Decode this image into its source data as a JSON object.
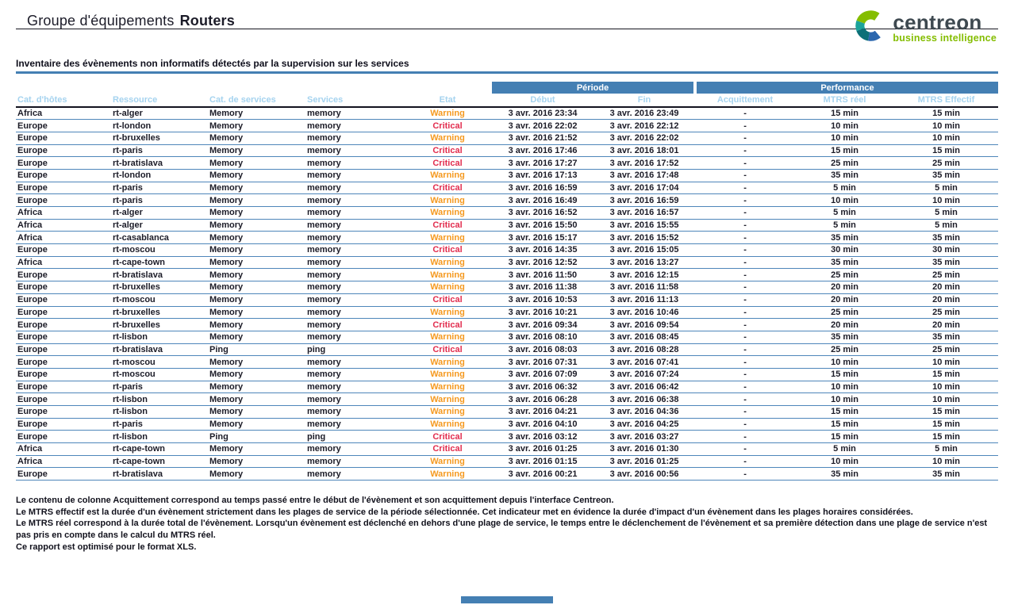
{
  "colors": {
    "accent_blue": "#447FB3",
    "subheader_text": "#A5D3EF",
    "warning": "#F5991F",
    "critical": "#E22D4E",
    "logo_green": "#84BD00",
    "logo_gray": "#3E4950",
    "text": "#1C1C28"
  },
  "header": {
    "title_prefix": "Groupe d'équipements",
    "title_group": "Routers",
    "logo_name": "centreon",
    "logo_tagline": "business intelligence"
  },
  "section": {
    "title": "Inventaire des évènements non informatifs détectés par la supervision sur les services"
  },
  "table": {
    "group_headers": {
      "periode": "Période",
      "performance": "Performance"
    },
    "columns": {
      "host_cat": "Cat. d'hôtes",
      "resource": "Ressource",
      "service_cat": "Cat. de services",
      "service": "Services",
      "state": "Etat",
      "start": "Début",
      "end": "Fin",
      "ack": "Acquittement",
      "mtrs_real": "MTRS réel",
      "mtrs_eff": "MTRS Effectif"
    },
    "rows": [
      {
        "host_cat": "Africa",
        "resource": "rt-alger",
        "service_cat": "Memory",
        "service": "memory",
        "state": "Warning",
        "start": "3 avr. 2016 23:34",
        "end": "3 avr. 2016 23:49",
        "ack": "-",
        "mtrs_real": "15 min",
        "mtrs_eff": "15 min"
      },
      {
        "host_cat": "Europe",
        "resource": "rt-london",
        "service_cat": "Memory",
        "service": "memory",
        "state": "Critical",
        "start": "3 avr. 2016 22:02",
        "end": "3 avr. 2016 22:12",
        "ack": "-",
        "mtrs_real": "10 min",
        "mtrs_eff": "10 min"
      },
      {
        "host_cat": "Europe",
        "resource": "rt-bruxelles",
        "service_cat": "Memory",
        "service": "memory",
        "state": "Warning",
        "start": "3 avr. 2016 21:52",
        "end": "3 avr. 2016 22:02",
        "ack": "-",
        "mtrs_real": "10 min",
        "mtrs_eff": "10 min"
      },
      {
        "host_cat": "Europe",
        "resource": "rt-paris",
        "service_cat": "Memory",
        "service": "memory",
        "state": "Critical",
        "start": "3 avr. 2016 17:46",
        "end": "3 avr. 2016 18:01",
        "ack": "-",
        "mtrs_real": "15 min",
        "mtrs_eff": "15 min"
      },
      {
        "host_cat": "Europe",
        "resource": "rt-bratislava",
        "service_cat": "Memory",
        "service": "memory",
        "state": "Critical",
        "start": "3 avr. 2016 17:27",
        "end": "3 avr. 2016 17:52",
        "ack": "-",
        "mtrs_real": "25 min",
        "mtrs_eff": "25 min"
      },
      {
        "host_cat": "Europe",
        "resource": "rt-london",
        "service_cat": "Memory",
        "service": "memory",
        "state": "Warning",
        "start": "3 avr. 2016 17:13",
        "end": "3 avr. 2016 17:48",
        "ack": "-",
        "mtrs_real": "35 min",
        "mtrs_eff": "35 min"
      },
      {
        "host_cat": "Europe",
        "resource": "rt-paris",
        "service_cat": "Memory",
        "service": "memory",
        "state": "Critical",
        "start": "3 avr. 2016 16:59",
        "end": "3 avr. 2016 17:04",
        "ack": "-",
        "mtrs_real": "5 min",
        "mtrs_eff": "5 min"
      },
      {
        "host_cat": "Europe",
        "resource": "rt-paris",
        "service_cat": "Memory",
        "service": "memory",
        "state": "Warning",
        "start": "3 avr. 2016 16:49",
        "end": "3 avr. 2016 16:59",
        "ack": "-",
        "mtrs_real": "10 min",
        "mtrs_eff": "10 min"
      },
      {
        "host_cat": "Africa",
        "resource": "rt-alger",
        "service_cat": "Memory",
        "service": "memory",
        "state": "Warning",
        "start": "3 avr. 2016 16:52",
        "end": "3 avr. 2016 16:57",
        "ack": "-",
        "mtrs_real": "5 min",
        "mtrs_eff": "5 min"
      },
      {
        "host_cat": "Africa",
        "resource": "rt-alger",
        "service_cat": "Memory",
        "service": "memory",
        "state": "Critical",
        "start": "3 avr. 2016 15:50",
        "end": "3 avr. 2016 15:55",
        "ack": "-",
        "mtrs_real": "5 min",
        "mtrs_eff": "5 min"
      },
      {
        "host_cat": "Africa",
        "resource": "rt-casablanca",
        "service_cat": "Memory",
        "service": "memory",
        "state": "Warning",
        "start": "3 avr. 2016 15:17",
        "end": "3 avr. 2016 15:52",
        "ack": "-",
        "mtrs_real": "35 min",
        "mtrs_eff": "35 min"
      },
      {
        "host_cat": "Europe",
        "resource": "rt-moscou",
        "service_cat": "Memory",
        "service": "memory",
        "state": "Critical",
        "start": "3 avr. 2016 14:35",
        "end": "3 avr. 2016 15:05",
        "ack": "-",
        "mtrs_real": "30 min",
        "mtrs_eff": "30 min"
      },
      {
        "host_cat": "Africa",
        "resource": "rt-cape-town",
        "service_cat": "Memory",
        "service": "memory",
        "state": "Warning",
        "start": "3 avr. 2016 12:52",
        "end": "3 avr. 2016 13:27",
        "ack": "-",
        "mtrs_real": "35 min",
        "mtrs_eff": "35 min"
      },
      {
        "host_cat": "Europe",
        "resource": "rt-bratislava",
        "service_cat": "Memory",
        "service": "memory",
        "state": "Warning",
        "start": "3 avr. 2016 11:50",
        "end": "3 avr. 2016 12:15",
        "ack": "-",
        "mtrs_real": "25 min",
        "mtrs_eff": "25 min"
      },
      {
        "host_cat": "Europe",
        "resource": "rt-bruxelles",
        "service_cat": "Memory",
        "service": "memory",
        "state": "Warning",
        "start": "3 avr. 2016 11:38",
        "end": "3 avr. 2016 11:58",
        "ack": "-",
        "mtrs_real": "20 min",
        "mtrs_eff": "20 min"
      },
      {
        "host_cat": "Europe",
        "resource": "rt-moscou",
        "service_cat": "Memory",
        "service": "memory",
        "state": "Critical",
        "start": "3 avr. 2016 10:53",
        "end": "3 avr. 2016 11:13",
        "ack": "-",
        "mtrs_real": "20 min",
        "mtrs_eff": "20 min"
      },
      {
        "host_cat": "Europe",
        "resource": "rt-bruxelles",
        "service_cat": "Memory",
        "service": "memory",
        "state": "Warning",
        "start": "3 avr. 2016 10:21",
        "end": "3 avr. 2016 10:46",
        "ack": "-",
        "mtrs_real": "25 min",
        "mtrs_eff": "25 min"
      },
      {
        "host_cat": "Europe",
        "resource": "rt-bruxelles",
        "service_cat": "Memory",
        "service": "memory",
        "state": "Critical",
        "start": "3 avr. 2016 09:34",
        "end": "3 avr. 2016 09:54",
        "ack": "-",
        "mtrs_real": "20 min",
        "mtrs_eff": "20 min"
      },
      {
        "host_cat": "Europe",
        "resource": "rt-lisbon",
        "service_cat": "Memory",
        "service": "memory",
        "state": "Warning",
        "start": "3 avr. 2016 08:10",
        "end": "3 avr. 2016 08:45",
        "ack": "-",
        "mtrs_real": "35 min",
        "mtrs_eff": "35 min"
      },
      {
        "host_cat": "Europe",
        "resource": "rt-bratislava",
        "service_cat": "Ping",
        "service": "ping",
        "state": "Critical",
        "start": "3 avr. 2016 08:03",
        "end": "3 avr. 2016 08:28",
        "ack": "-",
        "mtrs_real": "25 min",
        "mtrs_eff": "25 min"
      },
      {
        "host_cat": "Europe",
        "resource": "rt-moscou",
        "service_cat": "Memory",
        "service": "memory",
        "state": "Warning",
        "start": "3 avr. 2016 07:31",
        "end": "3 avr. 2016 07:41",
        "ack": "-",
        "mtrs_real": "10 min",
        "mtrs_eff": "10 min"
      },
      {
        "host_cat": "Europe",
        "resource": "rt-moscou",
        "service_cat": "Memory",
        "service": "memory",
        "state": "Warning",
        "start": "3 avr. 2016 07:09",
        "end": "3 avr. 2016 07:24",
        "ack": "-",
        "mtrs_real": "15 min",
        "mtrs_eff": "15 min"
      },
      {
        "host_cat": "Europe",
        "resource": "rt-paris",
        "service_cat": "Memory",
        "service": "memory",
        "state": "Warning",
        "start": "3 avr. 2016 06:32",
        "end": "3 avr. 2016 06:42",
        "ack": "-",
        "mtrs_real": "10 min",
        "mtrs_eff": "10 min"
      },
      {
        "host_cat": "Europe",
        "resource": "rt-lisbon",
        "service_cat": "Memory",
        "service": "memory",
        "state": "Warning",
        "start": "3 avr. 2016 06:28",
        "end": "3 avr. 2016 06:38",
        "ack": "-",
        "mtrs_real": "10 min",
        "mtrs_eff": "10 min"
      },
      {
        "host_cat": "Europe",
        "resource": "rt-lisbon",
        "service_cat": "Memory",
        "service": "memory",
        "state": "Warning",
        "start": "3 avr. 2016 04:21",
        "end": "3 avr. 2016 04:36",
        "ack": "-",
        "mtrs_real": "15 min",
        "mtrs_eff": "15 min"
      },
      {
        "host_cat": "Europe",
        "resource": "rt-paris",
        "service_cat": "Memory",
        "service": "memory",
        "state": "Warning",
        "start": "3 avr. 2016 04:10",
        "end": "3 avr. 2016 04:25",
        "ack": "-",
        "mtrs_real": "15 min",
        "mtrs_eff": "15 min"
      },
      {
        "host_cat": "Europe",
        "resource": "rt-lisbon",
        "service_cat": "Ping",
        "service": "ping",
        "state": "Critical",
        "start": "3 avr. 2016 03:12",
        "end": "3 avr. 2016 03:27",
        "ack": "-",
        "mtrs_real": "15 min",
        "mtrs_eff": "15 min"
      },
      {
        "host_cat": "Africa",
        "resource": "rt-cape-town",
        "service_cat": "Memory",
        "service": "memory",
        "state": "Critical",
        "start": "3 avr. 2016 01:25",
        "end": "3 avr. 2016 01:30",
        "ack": "-",
        "mtrs_real": "5 min",
        "mtrs_eff": "5 min"
      },
      {
        "host_cat": "Africa",
        "resource": "rt-cape-town",
        "service_cat": "Memory",
        "service": "memory",
        "state": "Warning",
        "start": "3 avr. 2016 01:15",
        "end": "3 avr. 2016 01:25",
        "ack": "-",
        "mtrs_real": "10 min",
        "mtrs_eff": "10 min"
      },
      {
        "host_cat": "Europe",
        "resource": "rt-bratislava",
        "service_cat": "Memory",
        "service": "memory",
        "state": "Warning",
        "start": "3 avr. 2016 00:21",
        "end": "3 avr. 2016 00:56",
        "ack": "-",
        "mtrs_real": "35 min",
        "mtrs_eff": "35 min"
      }
    ]
  },
  "footer": {
    "notes": [
      "Le contenu de colonne Acquittement correspond au temps passé entre le début de l'évènement et son acquittement depuis l'interface Centreon.",
      "Le MTRS effectif est la durée d'un évènement strictement dans les plages de service de la période sélectionnée. Cet indicateur met en évidence la durée d'impact d'un évènement dans les plages horaires considérées.",
      "Le MTRS réel correspond à la durée total de l'évènement. Lorsqu'un évènement est déclenché en dehors d'une plage de service, le temps entre le déclenchement de l'évènement et sa première détection dans une plage de service n'est pas pris en compte dans le calcul du MTRS réel.",
      "Ce rapport est optimisé pour le format XLS."
    ]
  }
}
